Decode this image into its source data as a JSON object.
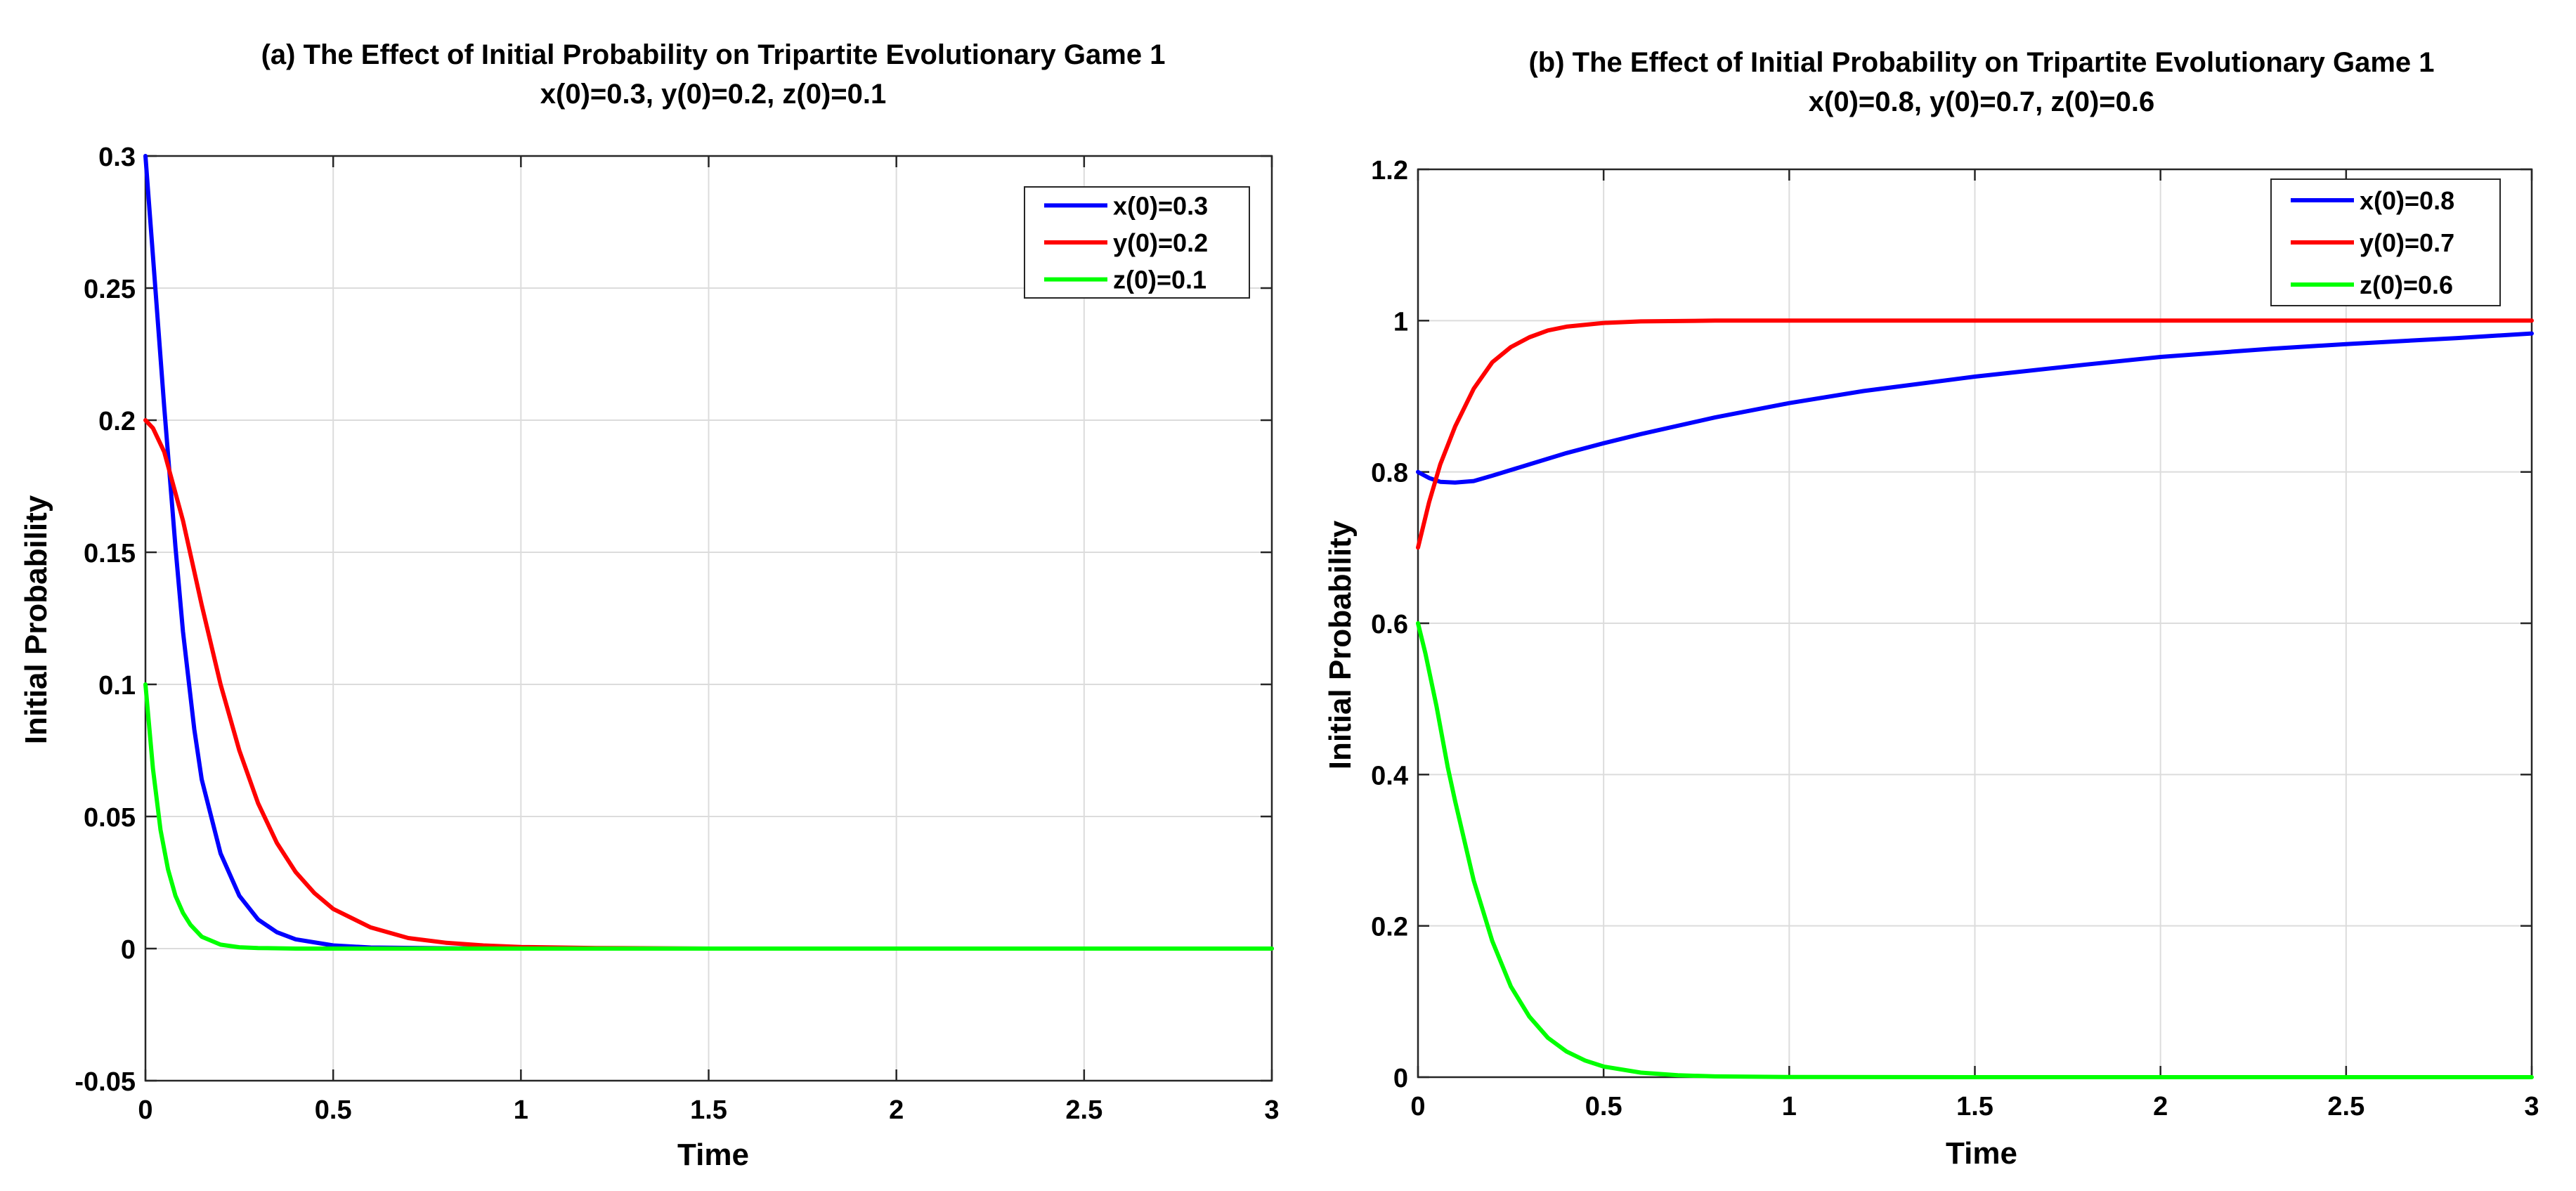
{
  "colors": {
    "x_series": "#0000ff",
    "y_series": "#ff0000",
    "z_series": "#00ff00",
    "grid": "#dcdcdc",
    "axis": "#262626"
  },
  "chart_data": [
    {
      "type": "line",
      "title": "(a) The Effect of Initial Probability on Tripartite Evolutionary Game 1",
      "subtitle": "x(0)=0.3, y(0)=0.2, z(0)=0.1",
      "xlabel": "Time",
      "ylabel": "Initial Probability",
      "xlim": [
        0,
        3
      ],
      "ylim": [
        -0.05,
        0.3
      ],
      "xticks": [
        0,
        0.5,
        1,
        1.5,
        2,
        2.5,
        3
      ],
      "xtick_labels": [
        "0",
        "0.5",
        "1",
        "1.5",
        "2",
        "2.5",
        "3"
      ],
      "yticks": [
        -0.05,
        0,
        0.05,
        0.1,
        0.15,
        0.2,
        0.25,
        0.3
      ],
      "ytick_labels": [
        "-0.05",
        "0",
        "0.05",
        "0.1",
        "0.15",
        "0.2",
        "0.25",
        "0.3"
      ],
      "grid": true,
      "legend_position": "top-right",
      "series": [
        {
          "name": "x(0)=0.3",
          "color": "#0000ff",
          "x": [
            0,
            0.02,
            0.05,
            0.08,
            0.1,
            0.13,
            0.15,
            0.2,
            0.25,
            0.3,
            0.35,
            0.4,
            0.5,
            0.6,
            0.8,
            1.0,
            1.5,
            2.0,
            2.5,
            3.0
          ],
          "y": [
            0.3,
            0.262,
            0.205,
            0.152,
            0.12,
            0.083,
            0.064,
            0.036,
            0.02,
            0.011,
            0.0062,
            0.0035,
            0.0012,
            0.0004,
            0.0001,
            0,
            0,
            0,
            0,
            0
          ]
        },
        {
          "name": "y(0)=0.2",
          "color": "#ff0000",
          "x": [
            0,
            0.02,
            0.05,
            0.1,
            0.15,
            0.2,
            0.25,
            0.3,
            0.35,
            0.4,
            0.45,
            0.5,
            0.6,
            0.7,
            0.8,
            0.9,
            1.0,
            1.2,
            1.5,
            2.0,
            2.5,
            3.0
          ],
          "y": [
            0.2,
            0.197,
            0.188,
            0.162,
            0.13,
            0.1,
            0.075,
            0.055,
            0.04,
            0.029,
            0.021,
            0.015,
            0.008,
            0.004,
            0.0022,
            0.0012,
            0.0006,
            0.0002,
            0,
            0,
            0,
            0
          ]
        },
        {
          "name": "z(0)=0.1",
          "color": "#00ff00",
          "x": [
            0,
            0.02,
            0.04,
            0.06,
            0.08,
            0.1,
            0.12,
            0.15,
            0.2,
            0.25,
            0.3,
            0.4,
            0.6,
            1.0,
            1.5,
            2.0,
            2.5,
            3.0
          ],
          "y": [
            0.1,
            0.068,
            0.045,
            0.03,
            0.02,
            0.0135,
            0.009,
            0.0045,
            0.0015,
            0.0005,
            0.0002,
            0,
            0,
            0,
            0,
            0,
            0,
            0
          ]
        }
      ]
    },
    {
      "type": "line",
      "title": "(b) The Effect of Initial Probability on Tripartite Evolutionary Game 1",
      "subtitle": "x(0)=0.8, y(0)=0.7, z(0)=0.6",
      "xlabel": "Time",
      "ylabel": "Initial Probability",
      "xlim": [
        0,
        3
      ],
      "ylim": [
        0,
        1.2
      ],
      "xticks": [
        0,
        0.5,
        1,
        1.5,
        2,
        2.5,
        3
      ],
      "xtick_labels": [
        "0",
        "0.5",
        "1",
        "1.5",
        "2",
        "2.5",
        "3"
      ],
      "yticks": [
        0,
        0.2,
        0.4,
        0.6,
        0.8,
        1,
        1.2
      ],
      "ytick_labels": [
        "0",
        "0.2",
        "0.4",
        "0.6",
        "0.8",
        "1",
        "1.2"
      ],
      "grid": true,
      "legend_position": "top-right",
      "series": [
        {
          "name": "x(0)=0.8",
          "color": "#0000ff",
          "x": [
            0,
            0.03,
            0.06,
            0.1,
            0.15,
            0.2,
            0.3,
            0.4,
            0.5,
            0.6,
            0.8,
            1.0,
            1.2,
            1.5,
            1.8,
            2.0,
            2.3,
            2.5,
            2.8,
            3.0
          ],
          "y": [
            0.8,
            0.792,
            0.787,
            0.786,
            0.788,
            0.795,
            0.81,
            0.825,
            0.838,
            0.85,
            0.872,
            0.891,
            0.907,
            0.926,
            0.942,
            0.952,
            0.963,
            0.969,
            0.977,
            0.983
          ]
        },
        {
          "name": "y(0)=0.7",
          "color": "#ff0000",
          "x": [
            0,
            0.03,
            0.06,
            0.1,
            0.15,
            0.2,
            0.25,
            0.3,
            0.35,
            0.4,
            0.5,
            0.6,
            0.8,
            1.0,
            1.5,
            2.0,
            2.5,
            3.0
          ],
          "y": [
            0.7,
            0.76,
            0.81,
            0.86,
            0.91,
            0.945,
            0.965,
            0.978,
            0.987,
            0.992,
            0.997,
            0.999,
            1.0,
            1.0,
            1.0,
            1.0,
            1.0,
            1.0
          ]
        },
        {
          "name": "z(0)=0.6",
          "color": "#00ff00",
          "x": [
            0,
            0.02,
            0.05,
            0.08,
            0.1,
            0.15,
            0.2,
            0.25,
            0.3,
            0.35,
            0.4,
            0.45,
            0.5,
            0.6,
            0.7,
            0.8,
            1.0,
            1.5,
            2.0,
            2.5,
            3.0
          ],
          "y": [
            0.6,
            0.56,
            0.49,
            0.41,
            0.365,
            0.26,
            0.18,
            0.12,
            0.08,
            0.052,
            0.034,
            0.022,
            0.014,
            0.006,
            0.0025,
            0.001,
            0.0002,
            0,
            0,
            0,
            0
          ]
        }
      ]
    }
  ]
}
